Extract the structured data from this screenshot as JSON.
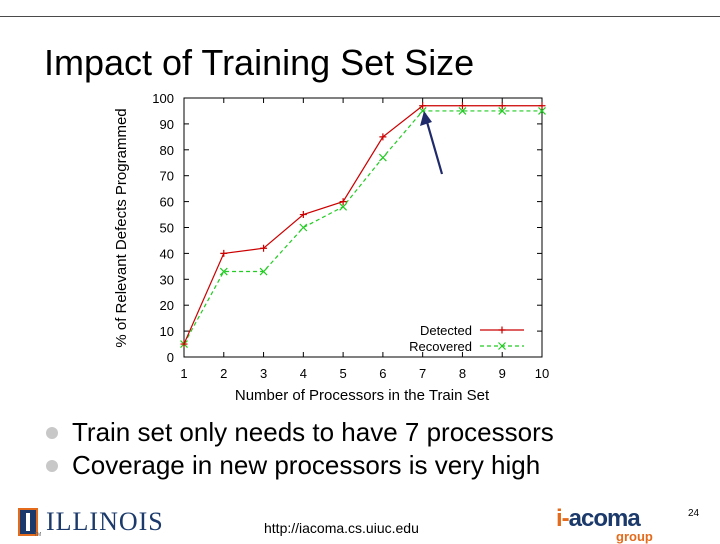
{
  "slide": {
    "title": "Impact of Training Set Size",
    "bullets": [
      "Train set only needs to have 7 processors",
      "Coverage in new processors is very high"
    ],
    "footer_url": "http://iacoma.cs.uiuc.edu",
    "page_number": "24",
    "logo_left": "ILLINOIS",
    "logo_right_prefix": "i-",
    "logo_right_main": "acoma",
    "logo_right_sub": "group"
  },
  "chart_data": {
    "type": "line",
    "xlabel": "Number of Processors in the Train Set",
    "ylabel": "% of Relevant Defects Programmed",
    "x": [
      1,
      2,
      3,
      4,
      5,
      6,
      7,
      8,
      9,
      10
    ],
    "xlim": [
      1,
      10
    ],
    "ylim": [
      0,
      100
    ],
    "xticks": [
      "1",
      "2",
      "3",
      "4",
      "5",
      "6",
      "7",
      "8",
      "9",
      "10"
    ],
    "yticks": [
      "0",
      "10",
      "20",
      "30",
      "40",
      "50",
      "60",
      "70",
      "80",
      "90",
      "100"
    ],
    "grid": false,
    "legend_position": "bottom-right",
    "annotation": "arrow pointing to the 7-processor point",
    "series": [
      {
        "name": "Detected",
        "color": "#cc0000",
        "marker": "plus",
        "dash": "solid",
        "values": [
          5,
          40,
          42,
          55,
          60,
          85,
          97,
          97,
          97,
          97
        ]
      },
      {
        "name": "Recovered",
        "color": "#22cc22",
        "marker": "cross",
        "dash": "dashed",
        "values": [
          5,
          33,
          33,
          50,
          58,
          77,
          95,
          95,
          95,
          95
        ]
      }
    ]
  }
}
